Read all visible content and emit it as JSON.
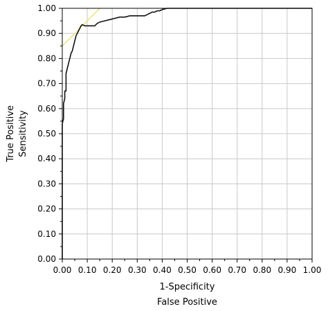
{
  "chart_data": {
    "type": "line",
    "xlabel": [
      "1-Specificity",
      "False Positive"
    ],
    "ylabel": [
      "True Positive",
      "Sensitivity"
    ],
    "xlim": [
      0,
      1
    ],
    "ylim": [
      0,
      1
    ],
    "x_ticks": [
      "0.00",
      "0.10",
      "0.20",
      "0.30",
      "0.40",
      "0.50",
      "0.60",
      "0.70",
      "0.80",
      "0.90",
      "1.00"
    ],
    "y_ticks": [
      "0.00",
      "0.10",
      "0.20",
      "0.30",
      "0.40",
      "0.50",
      "0.60",
      "0.70",
      "0.80",
      "0.90",
      "1.00"
    ],
    "grid": true,
    "colors": {
      "curve": "#111111",
      "tangent": "#e8e070",
      "grid": "#c8c8c8"
    },
    "series": [
      {
        "x": [
          0.0,
          0.0,
          0.005,
          0.005,
          0.01,
          0.01,
          0.015,
          0.015,
          0.02,
          0.025,
          0.03,
          0.035,
          0.04,
          0.045,
          0.05,
          0.055,
          0.06,
          0.065,
          0.07,
          0.075,
          0.08,
          0.09,
          0.1,
          0.115,
          0.13,
          0.14,
          0.15,
          0.17,
          0.19,
          0.21,
          0.23,
          0.25,
          0.27,
          0.29,
          0.31,
          0.33,
          0.34,
          0.35,
          0.36,
          0.37,
          0.38,
          0.39,
          0.4,
          0.42,
          0.45,
          0.5,
          0.6,
          0.7,
          0.8,
          0.9,
          1.0
        ],
        "y": [
          0.0,
          0.54,
          0.56,
          0.62,
          0.64,
          0.67,
          0.67,
          0.74,
          0.76,
          0.78,
          0.8,
          0.82,
          0.83,
          0.85,
          0.87,
          0.89,
          0.9,
          0.91,
          0.92,
          0.93,
          0.935,
          0.93,
          0.93,
          0.93,
          0.93,
          0.94,
          0.945,
          0.95,
          0.955,
          0.96,
          0.965,
          0.965,
          0.97,
          0.97,
          0.97,
          0.97,
          0.975,
          0.98,
          0.985,
          0.985,
          0.99,
          0.99,
          0.995,
          1.0,
          1.0,
          1.0,
          1.0,
          1.0,
          1.0,
          1.0,
          1.0
        ]
      },
      {
        "x": [
          0.0,
          0.15
        ],
        "y": [
          0.85,
          1.0
        ]
      }
    ]
  }
}
